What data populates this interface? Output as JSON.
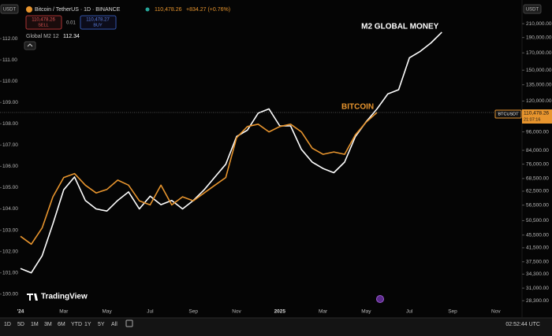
{
  "ui": {
    "header": {
      "quote_unit": "USDT",
      "symbol": "Bitcoin / TetherUS · 1D · BINANCE",
      "last": "110,478.26",
      "change": "+834.27 (+0.76%)",
      "sell_price": "110,478.26",
      "sell": "SELL",
      "spread": "0.01",
      "buy_price": "110,478.27",
      "buy": "BUY",
      "indicator": "Global M2 12",
      "indicator_value": "112.34",
      "right_unit": "USDT"
    },
    "price_tag": {
      "symbol": "BTCUSDT",
      "price": "110,478.26",
      "countdown": "21:07:16"
    },
    "brand": "TradingView",
    "toolbar": {
      "ranges": [
        "1D",
        "5D",
        "1M",
        "3M",
        "6M",
        "YTD",
        "1Y",
        "5Y",
        "All"
      ],
      "clock": "02:52:44 UTC"
    }
  },
  "chart_data": {
    "type": "line",
    "categories": [
      "'24",
      null,
      null,
      null,
      "Mar",
      null,
      null,
      null,
      "May",
      null,
      null,
      null,
      "Jul",
      null,
      null,
      null,
      "Sep",
      null,
      null,
      null,
      "Nov",
      null,
      null,
      null,
      "2025",
      null,
      null,
      null,
      "Mar",
      null,
      null,
      null,
      "May",
      null,
      null,
      null,
      "Jul",
      null,
      null,
      null,
      "Sep",
      null,
      null,
      null,
      "Nov",
      null
    ],
    "series": [
      {
        "name": "M2 GLOBAL MONEY",
        "color": "#ffffff",
        "values": [
          101.2,
          101.0,
          101.8,
          103.3,
          104.9,
          105.5,
          104.4,
          104.0,
          103.9,
          104.4,
          104.8,
          104.0,
          104.6,
          104.2,
          104.4,
          104.0,
          104.4,
          104.9,
          105.5,
          106.1,
          107.4,
          107.7,
          108.5,
          108.7,
          107.9,
          107.9,
          106.8,
          106.2,
          105.9,
          105.7,
          106.2,
          107.4,
          108.1,
          108.7,
          109.4,
          109.6,
          111.1,
          111.4,
          111.8,
          112.3,
          null,
          null,
          null,
          null,
          null,
          null
        ]
      },
      {
        "name": "BITCOIN",
        "color": "#e8952e",
        "axis": "y2",
        "values": [
          45100,
          42600,
          47900,
          60000,
          69000,
          71000,
          65300,
          61700,
          63300,
          67700,
          65300,
          58300,
          56600,
          65300,
          56600,
          60000,
          58300,
          61700,
          65300,
          69000,
          92000,
          99800,
          101500,
          96000,
          99800,
          101500,
          96000,
          85300,
          81600,
          83000,
          81600,
          94000,
          103000,
          110478,
          null,
          null,
          null,
          null,
          null,
          null,
          null,
          null,
          null,
          null,
          null,
          null
        ]
      }
    ],
    "ylim": [
      99.4,
      113
    ],
    "yticks": [
      {
        "value": 100,
        "label": "100.00"
      },
      {
        "value": 101,
        "label": "101.00"
      },
      {
        "value": 102,
        "label": "102.00"
      },
      {
        "value": 103,
        "label": "103.00"
      },
      {
        "value": 104,
        "label": "104.00"
      },
      {
        "value": 105,
        "label": "105.00"
      },
      {
        "value": 106,
        "label": "106.00"
      },
      {
        "value": 107,
        "label": "107.00"
      },
      {
        "value": 108,
        "label": "108.00"
      },
      {
        "value": 109,
        "label": "109.00"
      },
      {
        "value": 110,
        "label": "110.00"
      },
      {
        "value": 111,
        "label": "111.00"
      },
      {
        "value": 112,
        "label": "112.00"
      }
    ],
    "y2lim": [
      27060,
      219900
    ],
    "y2log": true,
    "y2ticks": [
      {
        "value": 210000,
        "label": "210,000.00"
      },
      {
        "value": 190000,
        "label": "190,000.00"
      },
      {
        "value": 170000,
        "label": "170,000.00"
      },
      {
        "value": 150000,
        "label": "150,000.00"
      },
      {
        "value": 135000,
        "label": "135,000.00"
      },
      {
        "value": 120000,
        "label": "120,000.00"
      },
      {
        "value": 96000,
        "label": "96,000.00"
      },
      {
        "value": 84000,
        "label": "84,000.00"
      },
      {
        "value": 76000,
        "label": "76,000.00"
      },
      {
        "value": 68500,
        "label": "68,500.00"
      },
      {
        "value": 62500,
        "label": "62,500.00"
      },
      {
        "value": 56500,
        "label": "56,500.00"
      },
      {
        "value": 50500,
        "label": "50,500.00"
      },
      {
        "value": 45500,
        "label": "45,500.00"
      },
      {
        "value": 41500,
        "label": "41,500.00"
      },
      {
        "value": 37500,
        "label": "37,500.00"
      },
      {
        "value": 34300,
        "label": "34,300.00"
      },
      {
        "value": 31000,
        "label": "31,000.00"
      },
      {
        "value": 28300,
        "label": "28,300.00"
      }
    ],
    "grid": false
  }
}
